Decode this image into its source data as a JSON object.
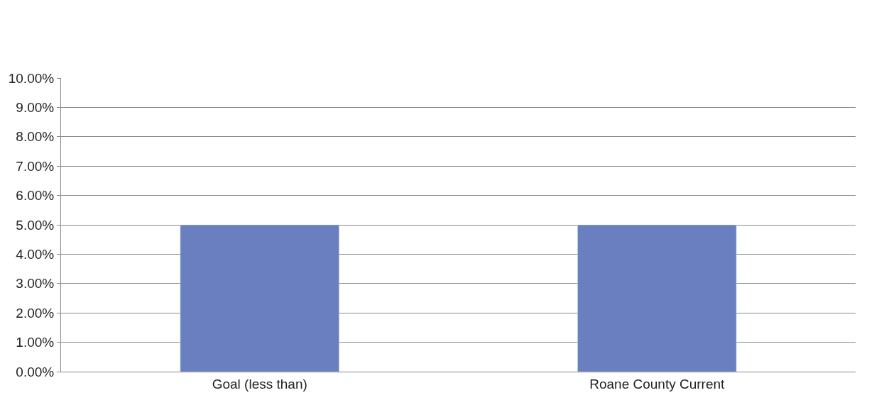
{
  "chart_data": {
    "type": "bar",
    "categories": [
      "Goal (less than)",
      "Roane County Current"
    ],
    "series": [
      {
        "color": "#6a7fbf",
        "values": [
          5,
          5
        ]
      }
    ],
    "ylim": [
      0,
      10
    ],
    "yticks": [
      {
        "value": 0,
        "label": "0.00%"
      },
      {
        "value": 1,
        "label": "1.00%"
      },
      {
        "value": 2,
        "label": "2.00%"
      },
      {
        "value": 3,
        "label": "3.00%"
      },
      {
        "value": 4,
        "label": "4.00%"
      },
      {
        "value": 5,
        "label": "5.00%"
      },
      {
        "value": 6,
        "label": "6.00%"
      },
      {
        "value": 7,
        "label": "7.00%"
      },
      {
        "value": 8,
        "label": "8.00%"
      },
      {
        "value": 9,
        "label": "9.00%"
      },
      {
        "value": 10,
        "label": "10.00%"
      }
    ],
    "grid": "y"
  }
}
